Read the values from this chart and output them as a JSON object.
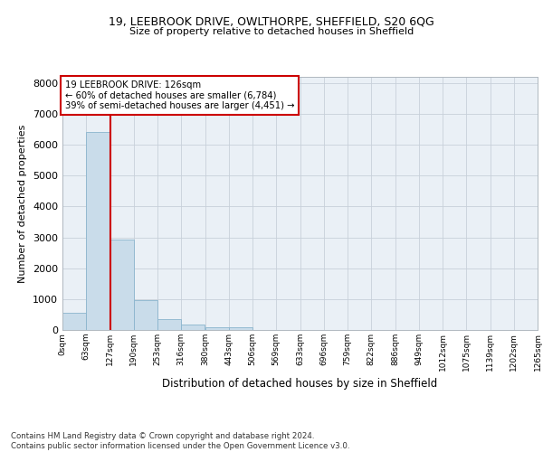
{
  "title1": "19, LEEBROOK DRIVE, OWLTHORPE, SHEFFIELD, S20 6QG",
  "title2": "Size of property relative to detached houses in Sheffield",
  "xlabel": "Distribution of detached houses by size in Sheffield",
  "ylabel": "Number of detached properties",
  "bin_labels": [
    "0sqm",
    "63sqm",
    "127sqm",
    "190sqm",
    "253sqm",
    "316sqm",
    "380sqm",
    "443sqm",
    "506sqm",
    "569sqm",
    "633sqm",
    "696sqm",
    "759sqm",
    "822sqm",
    "886sqm",
    "949sqm",
    "1012sqm",
    "1075sqm",
    "1139sqm",
    "1202sqm",
    "1265sqm"
  ],
  "bin_edges": [
    0,
    63,
    127,
    190,
    253,
    316,
    380,
    443,
    506,
    569,
    633,
    696,
    759,
    822,
    886,
    949,
    1012,
    1075,
    1139,
    1202,
    1265
  ],
  "bar_heights": [
    560,
    6400,
    2920,
    980,
    360,
    175,
    100,
    80,
    0,
    0,
    0,
    0,
    0,
    0,
    0,
    0,
    0,
    0,
    0,
    0
  ],
  "bar_color": "#c9dcea",
  "bar_edge_color": "#8ab4cd",
  "property_line_x": 127,
  "property_line_color": "#cc0000",
  "ylim": [
    0,
    8200
  ],
  "yticks": [
    0,
    1000,
    2000,
    3000,
    4000,
    5000,
    6000,
    7000,
    8000
  ],
  "annotation_line1": "19 LEEBROOK DRIVE: 126sqm",
  "annotation_line2": "← 60% of detached houses are smaller (6,784)",
  "annotation_line3": "39% of semi-detached houses are larger (4,451) →",
  "annotation_box_color": "#ffffff",
  "annotation_box_edge_color": "#cc0000",
  "footer_text": "Contains HM Land Registry data © Crown copyright and database right 2024.\nContains public sector information licensed under the Open Government Licence v3.0.",
  "grid_color": "#c8d0da",
  "background_color": "#eaf0f6"
}
